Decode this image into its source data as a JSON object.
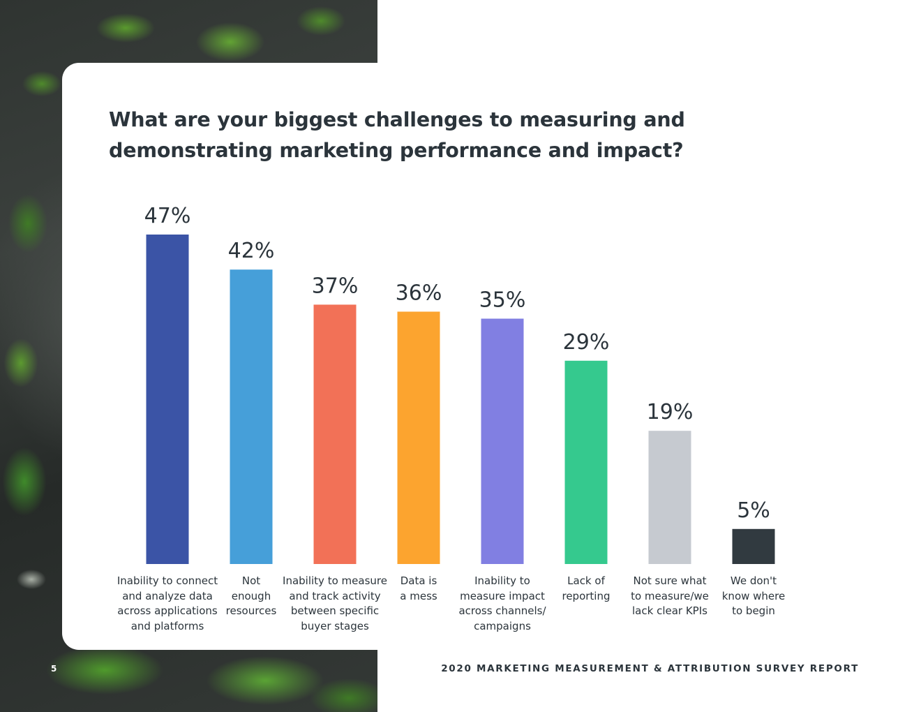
{
  "page_number": "5",
  "footer": "2020 MARKETING MEASUREMENT & ATTRIBUTION SURVEY REPORT",
  "chart_data": {
    "type": "bar",
    "title": "What are your biggest challenges to measuring and demonstrating marketing performance and impact?",
    "categories": [
      "Inability to connect\nand analyze data\nacross applications\nand platforms",
      "Not\nenough\nresources",
      "Inability to measure\nand track activity\nbetween specific\nbuyer stages",
      "Data is\na mess",
      "Inability to\nmeasure impact\nacross channels/\ncampaigns",
      "Lack of\nreporting",
      "Not sure what\nto measure/we\nlack clear KPIs",
      "We don't\nknow where\nto begin"
    ],
    "values": [
      47,
      42,
      37,
      36,
      35,
      29,
      19,
      5
    ],
    "value_labels": [
      "47%",
      "42%",
      "37%",
      "36%",
      "35%",
      "29%",
      "19%",
      "5%"
    ],
    "colors": [
      "#3b54a6",
      "#469fd9",
      "#f27157",
      "#fca42f",
      "#817fe2",
      "#35c98e",
      "#c6cad0",
      "#313a40"
    ],
    "unit": "%",
    "ylim": [
      0,
      47
    ],
    "grid": false,
    "legend": "none"
  }
}
